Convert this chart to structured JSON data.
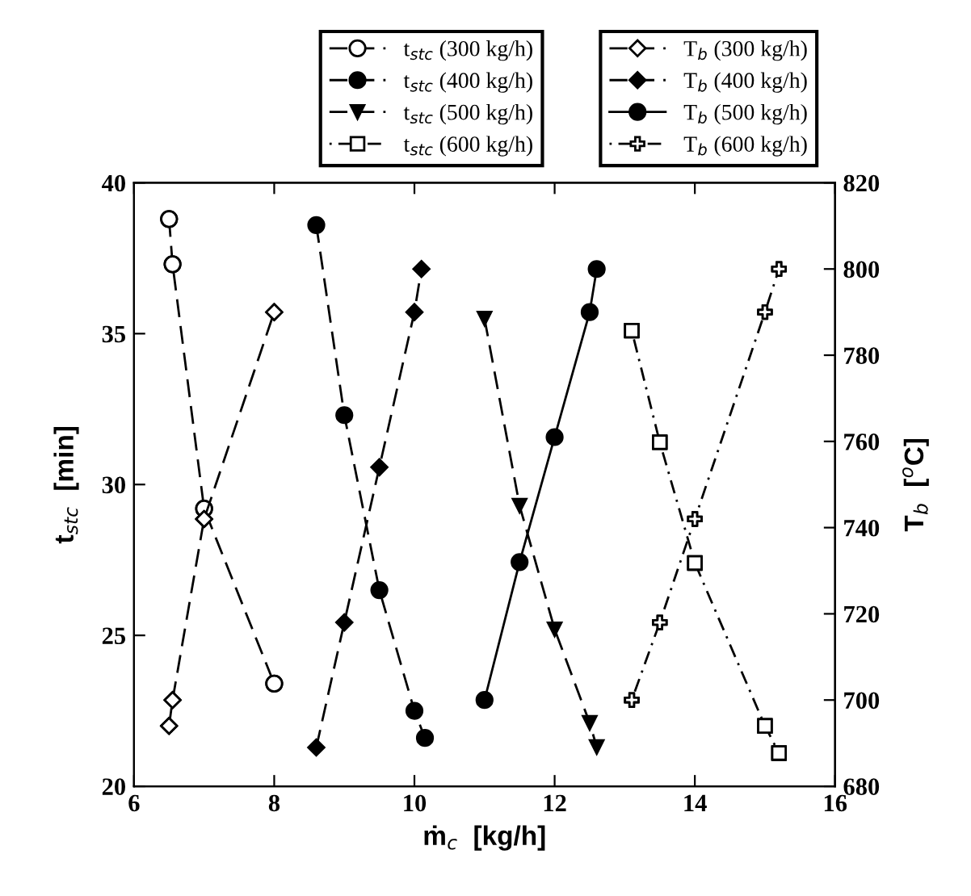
{
  "chart_data": {
    "type": "line",
    "xlabel": "ṁ$_{c}$  [kg/h]",
    "ylabel": "t$_{stc}$  [min]",
    "y2label": "T$_{b}$  [$^{o}$C]",
    "xlim": [
      6,
      16
    ],
    "xticks": [
      6,
      8,
      10,
      12,
      14,
      16
    ],
    "ylim": [
      20,
      40
    ],
    "yticks": [
      20,
      25,
      30,
      35,
      40
    ],
    "y2lim": [
      680,
      820
    ],
    "y2ticks": [
      680,
      700,
      720,
      740,
      760,
      780,
      800,
      820
    ],
    "legend": "top",
    "grid": false,
    "series": [
      {
        "name": "t$_{stc}$ (300 kg/h)",
        "color": "#000000",
        "colors": [
          "#ffffff",
          "#ffffff",
          "#ffffff",
          "#ffffff"
        ],
        "marker": "circle",
        "line_style": "dashed",
        "x": [
          6.5,
          6.55,
          7,
          8
        ],
        "values": [
          38.8,
          37.3,
          29.2,
          23.4
        ]
      },
      {
        "name": "t$_{stc}$ (400 kg/h)",
        "color": "#000000",
        "marker": "circle",
        "line_style": "dashed",
        "x": [
          8.6,
          9,
          9.5,
          10,
          10.15
        ],
        "values": [
          38.6,
          32.3,
          26.5,
          22.5,
          21.6
        ]
      },
      {
        "name": "t$_{stc}$ (500 kg/h)",
        "color": "#000000",
        "marker": "triangle",
        "line_style": "dashed",
        "x": [
          11,
          11.5,
          12,
          12.5,
          12.6
        ],
        "values": [
          35.5,
          29.3,
          25.2,
          22.1,
          21.3
        ]
      },
      {
        "name": "t$_{stc}$ (600 kg/h)",
        "color": "#000000",
        "colors": [
          "#ffffff",
          "#ffffff",
          "#ffffff",
          "#ffffff",
          "#ffffff"
        ],
        "marker": "square",
        "line_style": "dotted",
        "x": [
          13.1,
          13.5,
          14,
          15,
          15.2
        ],
        "values": [
          35.1,
          31.4,
          27.4,
          22.0,
          21.1
        ]
      },
      {
        "name": "T$_{b}$ (300 kg/h)",
        "axis": "y2",
        "color": "#000000",
        "colors": [
          "#ffffff",
          "#ffffff",
          "#ffffff",
          "#ffffff"
        ],
        "marker": "diamond",
        "line_style": "dashed",
        "x": [
          6.5,
          6.55,
          7,
          8
        ],
        "values": [
          694,
          700,
          742,
          790
        ]
      },
      {
        "name": "T$_{b}$ (400 kg/h)",
        "axis": "y2",
        "color": "#000000",
        "marker": "diamond",
        "line_style": "dashed",
        "x": [
          8.6,
          9,
          9.5,
          10,
          10.1
        ],
        "values": [
          689,
          718,
          754,
          790,
          800
        ]
      },
      {
        "name": "T$_{b}$ (500 kg/h)",
        "axis": "y2",
        "color": "#000000",
        "marker": "circle",
        "line_style": "solid",
        "x": [
          11,
          11.5,
          12,
          12.5,
          12.6
        ],
        "values": [
          700,
          732,
          761,
          790,
          800
        ]
      },
      {
        "name": "T$_{b}$ (600 kg/h)",
        "axis": "y2",
        "color": "#000000",
        "colors": [
          "#ffffff",
          "#ffffff",
          "#ffffff",
          "#ffffff",
          "#ffffff"
        ],
        "marker": "cross",
        "line_style": "dotted",
        "x": [
          13.1,
          13.5,
          14,
          15,
          15.2
        ],
        "values": [
          700,
          718,
          742,
          790,
          800
        ]
      }
    ]
  }
}
